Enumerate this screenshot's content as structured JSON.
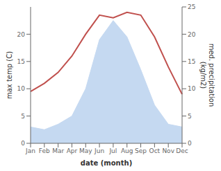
{
  "chart_data": {
    "type": "line",
    "categories": [
      "Jan",
      "Feb",
      "Mar",
      "Apr",
      "May",
      "Jun",
      "Jul",
      "Aug",
      "Sep",
      "Oct",
      "Nov",
      "Dec"
    ],
    "series": [
      {
        "type": "area",
        "color": "#c5d9f1",
        "axis": "y2",
        "values": [
          3.0,
          2.5,
          3.5,
          5.0,
          10.0,
          19.0,
          22.5,
          19.5,
          13.5,
          7.0,
          3.5,
          3.0
        ]
      },
      {
        "type": "line",
        "color": "#c0504d",
        "values": [
          9.5,
          11.0,
          13.0,
          16.0,
          20.0,
          23.5,
          23.0,
          24.0,
          23.5,
          19.5,
          14.0,
          9.0
        ]
      }
    ],
    "xlabel": "date (month)",
    "ylabel": "max temp (C)",
    "y2label": "med. precipitation\n(kg/m2)",
    "ylim": [
      0,
      25
    ],
    "yticks": [
      0,
      5,
      10,
      15,
      20
    ],
    "y2lim": [
      0,
      25
    ],
    "y2ticks": [
      0,
      5,
      10,
      15,
      20,
      25
    ],
    "grid": false
  }
}
